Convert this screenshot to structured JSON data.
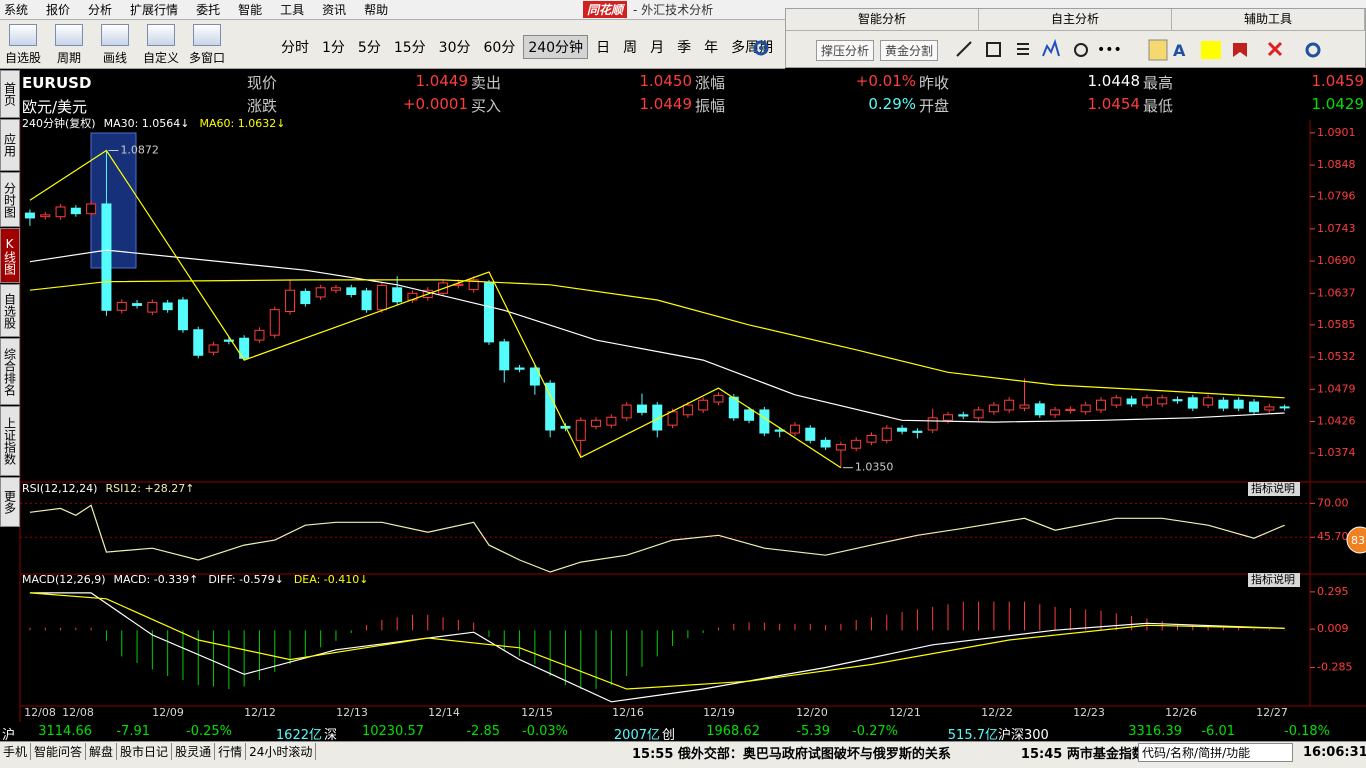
{
  "menu": [
    "系统",
    "报价",
    "分析",
    "扩展行情",
    "委托",
    "智能",
    "工具",
    "资讯",
    "帮助"
  ],
  "app_title": {
    "brand": "同花顺",
    "subtitle": "- 外汇技术分析"
  },
  "toolbar": {
    "tools": [
      "自选股",
      "周期",
      "画线",
      "自定义",
      "多窗口"
    ],
    "periods": [
      "分时",
      "1分",
      "5分",
      "15分",
      "30分",
      "60分",
      "240分钟",
      "日",
      "周",
      "月",
      "季",
      "年",
      "多周期"
    ],
    "selected": 6
  },
  "side_panel": {
    "tabs": [
      "智能分析",
      "自主分析",
      "辅助工具"
    ],
    "buttons": [
      "撑压分析",
      "黄金分割"
    ]
  },
  "left_tabs": {
    "items": [
      "首页",
      "应用",
      "分时图",
      "K线图",
      "自选股",
      "综合排名",
      "上证指数",
      "更多"
    ],
    "selected": 3
  },
  "quote": {
    "symbol": "EURUSD",
    "name": "欧元/美元",
    "fields": [
      {
        "label": "现价",
        "value": "1.0449",
        "color": "#ff3c3c"
      },
      {
        "label": "卖出",
        "value": "1.0450",
        "color": "#ff3c3c"
      },
      {
        "label": "涨幅",
        "value": "+0.01%",
        "color": "#ff3c3c"
      },
      {
        "label": "昨收",
        "value": "1.0448",
        "color": "#ffffff"
      },
      {
        "label": "最高",
        "value": "1.0459",
        "color": "#ff3c3c"
      },
      {
        "label": "涨跌",
        "value": "+0.0001",
        "color": "#ff3c3c"
      },
      {
        "label": "买入",
        "value": "1.0449",
        "color": "#ff3c3c"
      },
      {
        "label": "振幅",
        "value": "0.29%",
        "color": "#54fcfc"
      },
      {
        "label": "开盘",
        "value": "1.0454",
        "color": "#ff3c3c"
      },
      {
        "label": "最低",
        "value": "1.0429",
        "color": "#00e000"
      }
    ]
  },
  "chart_data": [
    {
      "type": "candlestick",
      "title": "240分钟(复权)",
      "x_labels": [
        "12/08",
        "12/08",
        "12/09",
        "12/12",
        "12/13",
        "12/14",
        "12/15",
        "12/16",
        "12/19",
        "12/20",
        "12/21",
        "12/22",
        "12/23",
        "12/26",
        "12/27"
      ],
      "up_color": "#ff3c3c",
      "down_color": "#54fcfc",
      "open": [
        1.0769,
        1.0763,
        1.0763,
        1.0777,
        1.0768,
        1.0784,
        1.0609,
        1.062,
        1.0606,
        1.0621,
        1.0626,
        1.0577,
        1.054,
        1.056,
        1.0563,
        1.056,
        1.0568,
        1.0607,
        1.064,
        1.0631,
        1.0642,
        1.0646,
        1.0641,
        1.061,
        1.0646,
        1.0626,
        1.063,
        1.0637,
        1.065,
        1.0643,
        1.0654,
        1.0557,
        1.0514,
        1.0514,
        1.0489,
        1.0418,
        1.0395,
        1.0418,
        1.042,
        1.0432,
        1.0453,
        1.0453,
        1.042,
        1.0437,
        1.0445,
        1.0458,
        1.0466,
        1.0445,
        1.0445,
        1.0412,
        1.0407,
        1.0415,
        1.0395,
        1.0379,
        1.0382,
        1.0392,
        1.0395,
        1.0415,
        1.041,
        1.0412,
        1.0428,
        1.0437,
        1.0432,
        1.0442,
        1.0445,
        1.0448,
        1.0455,
        1.0437,
        1.0444,
        1.0442,
        1.0445,
        1.0453,
        1.0463,
        1.0453,
        1.0455,
        1.0462,
        1.0465,
        1.0453,
        1.0461,
        1.0461,
        1.0458,
        1.0445,
        1.045
      ],
      "high": [
        1.0775,
        1.0771,
        1.0784,
        1.0782,
        1.079,
        1.0872,
        1.0627,
        1.0626,
        1.0627,
        1.0626,
        1.0631,
        1.0582,
        1.0557,
        1.0565,
        1.0568,
        1.0581,
        1.0615,
        1.066,
        1.0645,
        1.0651,
        1.0651,
        1.0651,
        1.0646,
        1.0655,
        1.0665,
        1.0642,
        1.0647,
        1.0659,
        1.066,
        1.0665,
        1.0659,
        1.0562,
        1.0519,
        1.0519,
        1.0494,
        1.0423,
        1.0433,
        1.0433,
        1.0438,
        1.0458,
        1.0472,
        1.0458,
        1.0447,
        1.0458,
        1.0466,
        1.0474,
        1.0471,
        1.045,
        1.045,
        1.0417,
        1.0425,
        1.042,
        1.04,
        1.0393,
        1.04,
        1.0408,
        1.042,
        1.042,
        1.0415,
        1.0447,
        1.0442,
        1.0442,
        1.045,
        1.0458,
        1.0466,
        1.0497,
        1.046,
        1.045,
        1.0451,
        1.0458,
        1.0466,
        1.047,
        1.0468,
        1.047,
        1.047,
        1.0467,
        1.047,
        1.047,
        1.0466,
        1.0466,
        1.0463,
        1.0455,
        1.0454
      ],
      "low": [
        1.0748,
        1.0758,
        1.0758,
        1.0763,
        1.0763,
        1.06,
        1.0604,
        1.0612,
        1.0601,
        1.0605,
        1.0572,
        1.053,
        1.0535,
        1.0553,
        1.0528,
        1.0555,
        1.0563,
        1.0602,
        1.0615,
        1.0626,
        1.0637,
        1.063,
        1.0605,
        1.0605,
        1.0618,
        1.0621,
        1.0625,
        1.0632,
        1.0645,
        1.0638,
        1.0552,
        1.049,
        1.0507,
        1.047,
        1.04,
        1.041,
        1.0367,
        1.0413,
        1.0415,
        1.0427,
        1.0436,
        1.04,
        1.0415,
        1.0432,
        1.044,
        1.0453,
        1.0427,
        1.0423,
        1.0402,
        1.04,
        1.0402,
        1.039,
        1.0379,
        1.035,
        1.0377,
        1.0387,
        1.039,
        1.0405,
        1.0398,
        1.0407,
        1.0423,
        1.043,
        1.0427,
        1.0437,
        1.044,
        1.0443,
        1.0432,
        1.0432,
        1.0439,
        1.0437,
        1.044,
        1.0448,
        1.045,
        1.0448,
        1.045,
        1.0455,
        1.0443,
        1.0448,
        1.0443,
        1.0443,
        1.0437,
        1.044,
        1.0444
      ],
      "close": [
        1.0761,
        1.0766,
        1.0779,
        1.0768,
        1.0784,
        1.0609,
        1.0622,
        1.0617,
        1.0622,
        1.061,
        1.0577,
        1.0535,
        1.0552,
        1.0558,
        1.053,
        1.0576,
        1.061,
        1.0642,
        1.062,
        1.0646,
        1.0646,
        1.0635,
        1.061,
        1.065,
        1.0623,
        1.0637,
        1.0642,
        1.0654,
        1.0652,
        1.0659,
        1.0557,
        1.0511,
        1.0512,
        1.0486,
        1.0412,
        1.0415,
        1.0428,
        1.0428,
        1.0433,
        1.0453,
        1.0441,
        1.0412,
        1.0442,
        1.0453,
        1.0461,
        1.0469,
        1.0432,
        1.0428,
        1.0407,
        1.041,
        1.042,
        1.0395,
        1.0384,
        1.0388,
        1.0395,
        1.0403,
        1.0415,
        1.041,
        1.0408,
        1.0432,
        1.0437,
        1.0435,
        1.0445,
        1.0453,
        1.0461,
        1.0453,
        1.0437,
        1.0445,
        1.0446,
        1.0453,
        1.0461,
        1.0465,
        1.0455,
        1.0465,
        1.0465,
        1.046,
        1.0448,
        1.0465,
        1.0448,
        1.0448,
        1.0442,
        1.045,
        1.0449
      ],
      "series": [
        {
          "name": "MA30: 1.0564↓",
          "color": "#ffffff",
          "x": [
            0,
            5,
            18,
            24,
            31,
            37,
            44,
            50,
            57,
            63,
            70,
            76,
            82
          ],
          "values": [
            1.0689,
            1.0708,
            1.0675,
            1.0651,
            1.0609,
            1.056,
            1.0527,
            1.047,
            1.0428,
            1.0425,
            1.0428,
            1.0432,
            1.044
          ]
        },
        {
          "name": "MA60: 1.0632↓",
          "color": "#ffff00",
          "x": [
            0,
            5,
            18,
            27,
            34,
            41,
            47,
            54,
            60,
            67,
            73,
            82
          ],
          "values": [
            1.0642,
            1.0656,
            1.0659,
            1.0659,
            1.0651,
            1.0626,
            1.0585,
            1.0544,
            1.0507,
            1.0486,
            1.0478,
            1.0465
          ]
        }
      ],
      "zigzag": {
        "color": "#ffff00",
        "x": [
          0,
          5,
          14,
          30,
          36,
          45,
          53
        ],
        "values": [
          1.079,
          1.0872,
          1.0527,
          1.0672,
          1.0367,
          1.0481,
          1.035
        ]
      },
      "annotations": [
        {
          "x": 5,
          "value": 1.0872,
          "label": "1.0872"
        },
        {
          "x": 53,
          "value": 1.035,
          "label": "1.0350"
        }
      ],
      "xlim": [
        -0.65,
        83.66
      ],
      "ylim": [
        1.0333,
        1.0909
      ],
      "yticks": [
        1.0901,
        1.0848,
        1.0796,
        1.0743,
        {
          "value": 1.069,
          "label": "1.0690"
        },
        1.0637,
        1.0585,
        1.0532,
        1.0479,
        1.0426,
        1.0374
      ]
    },
    {
      "type": "line",
      "title": "RSI(12,12,24)",
      "button": "指标说明",
      "series": [
        {
          "name": "RSI12: +28.27↑",
          "color": "#f0f0b0",
          "x": [
            0,
            2,
            3,
            4,
            5,
            8,
            11,
            14,
            16,
            18,
            20,
            23,
            26,
            29,
            30,
            32,
            34,
            36,
            39,
            42,
            45,
            48,
            52,
            55,
            58,
            61,
            65,
            67,
            71,
            74,
            77,
            80,
            82
          ],
          "values": [
            63.6,
            66.4,
            61.4,
            68.6,
            35,
            37.8,
            29.3,
            40,
            43.6,
            54.3,
            56.4,
            56.4,
            49.3,
            56.4,
            40,
            29.3,
            20.7,
            27.8,
            32.8,
            43.6,
            47.1,
            37.8,
            32.8,
            40,
            47.1,
            52.1,
            59.3,
            50.7,
            59.3,
            59.3,
            54.3,
            45,
            54.3
          ]
        }
      ],
      "xlim": [
        -0.65,
        83.66
      ],
      "ylim": [
        20,
        76
      ],
      "yticks": [
        {
          "value": 70,
          "label": "70.00"
        },
        {
          "value": 45.7,
          "label": "45.70"
        }
      ],
      "grid": true
    },
    {
      "type": "macd",
      "title": "MACD(12,26,9)",
      "button": "指标说明",
      "series": [
        {
          "name": "MACD: -0.339↑",
          "type": "bar",
          "up_color": "#ff3c3c",
          "down_color": "#00d000",
          "values": [
            0.02,
            0.02,
            0.02,
            0.02,
            0.02,
            -0.08,
            -0.2,
            -0.25,
            -0.3,
            -0.35,
            -0.38,
            -0.42,
            -0.43,
            -0.45,
            -0.43,
            -0.38,
            -0.32,
            -0.26,
            -0.2,
            -0.13,
            -0.08,
            -0.02,
            0.04,
            0.08,
            0.1,
            0.12,
            0.12,
            0.1,
            0.08,
            0.06,
            -0.05,
            -0.15,
            -0.2,
            -0.26,
            -0.35,
            -0.42,
            -0.45,
            -0.45,
            -0.42,
            -0.35,
            -0.28,
            -0.2,
            -0.12,
            -0.06,
            -0.02,
            0.02,
            0.05,
            0.06,
            0.06,
            0.05,
            0.05,
            0.05,
            0.04,
            0.05,
            0.08,
            0.1,
            0.12,
            0.14,
            0.16,
            0.18,
            0.2,
            0.22,
            0.22,
            0.22,
            0.22,
            0.22,
            0.2,
            0.18,
            0.17,
            0.16,
            0.15,
            0.13,
            0.11,
            0.09,
            0.07,
            0.05,
            0.04,
            0.03,
            0.02,
            0.02,
            0.01,
            0.01,
            0.005
          ]
        },
        {
          "name": "DIFF: -0.579↓",
          "color": "#ffffff",
          "x": [
            0,
            4,
            8,
            14,
            20,
            29,
            32,
            38,
            44,
            52,
            59,
            67,
            73,
            82
          ],
          "values": [
            0.287,
            0.287,
            -0.036,
            -0.337,
            -0.149,
            -0.014,
            -0.224,
            -0.548,
            -0.45,
            -0.285,
            -0.111,
            0.0015,
            0.054,
            0.016
          ]
        },
        {
          "name": "DEA: -0.410↓",
          "color": "#ffff00",
          "x": [
            0,
            5,
            11,
            17,
            26,
            32,
            39,
            47,
            55,
            64,
            73,
            82
          ],
          "values": [
            0.287,
            0.242,
            -0.074,
            -0.224,
            -0.059,
            -0.134,
            -0.45,
            -0.39,
            -0.262,
            -0.074,
            0.039,
            0.016
          ]
        }
      ],
      "xlim": [
        -0.65,
        83.66
      ],
      "ylim": [
        -0.58,
        0.34
      ],
      "yticks": [
        0.295,
        0.009,
        -0.285
      ]
    }
  ],
  "ticker": [
    {
      "name": "沪",
      "price": "3114.66",
      "change": "-7.91",
      "pct": "-0.25%",
      "volume": "1622亿"
    },
    {
      "name": "深",
      "price": "10230.57",
      "change": "-2.85",
      "pct": "-0.03%",
      "volume": "2007亿"
    },
    {
      "name": "创",
      "price": "1968.62",
      "change": "-5.39",
      "pct": "-0.27%",
      "volume": "515.7亿"
    },
    {
      "name": "沪深300",
      "price": "3316.39",
      "change": "-6.01",
      "pct": "-0.18%"
    }
  ],
  "status_bar": {
    "tabs": [
      "手机",
      "智能问答",
      "解盘",
      "股市日记",
      "股灵通",
      "行情",
      "24小时滚动"
    ],
    "news": [
      "15:55 俄外交部：奥巴马政府试图破坏与俄罗斯的关系",
      "15:45 两市基金指数"
    ],
    "search": "代码/名称/简拼/功能",
    "time": "16:06:31"
  },
  "badge": "83"
}
